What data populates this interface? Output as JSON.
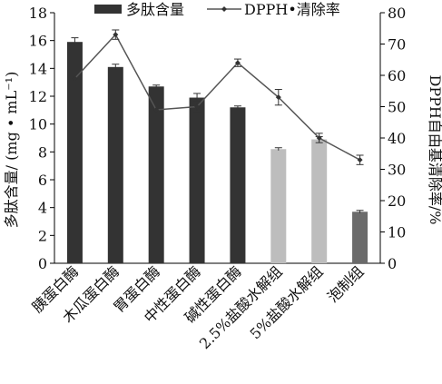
{
  "chart_data": {
    "type": "bar",
    "categories": [
      "胰蛋白酶",
      "木瓜蛋白酶",
      "胃蛋白酶",
      "中性蛋白酶",
      "碱性蛋白酶",
      "2.5%盐酸水解组",
      "5%盐酸水解组",
      "泡制组"
    ],
    "series": [
      {
        "name": "多肽含量",
        "axis": "left",
        "kind": "bar",
        "values": [
          15.9,
          14.1,
          12.7,
          11.9,
          11.2,
          8.2,
          8.9,
          3.7
        ],
        "errors": [
          0.3,
          0.2,
          0.1,
          0.3,
          0.1,
          0.1,
          0.2,
          0.1
        ],
        "colors": [
          "#333333",
          "#333333",
          "#333333",
          "#333333",
          "#333333",
          "#bdbdbd",
          "#bdbdbd",
          "#6b6b6b"
        ]
      },
      {
        "name": "DPPH•清除率",
        "axis": "right",
        "kind": "line",
        "values": [
          59,
          73,
          49,
          50,
          64,
          53,
          40,
          33
        ],
        "errors": [
          0,
          1.5,
          0,
          1.5,
          1.2,
          2.5,
          1.5,
          1.5
        ],
        "color": "#555555"
      }
    ],
    "ylabel": "多肽含量/ (mg • mL⁻¹)",
    "y2label": "DPPH自由基清除率/%",
    "ylim": [
      0,
      18
    ],
    "y2lim": [
      0,
      80
    ],
    "yticks": [
      0,
      2,
      4,
      6,
      8,
      10,
      12,
      14,
      16,
      18
    ],
    "y2ticks": [
      0,
      10,
      20,
      30,
      40,
      50,
      60,
      70,
      80
    ],
    "legend_position": "top"
  }
}
